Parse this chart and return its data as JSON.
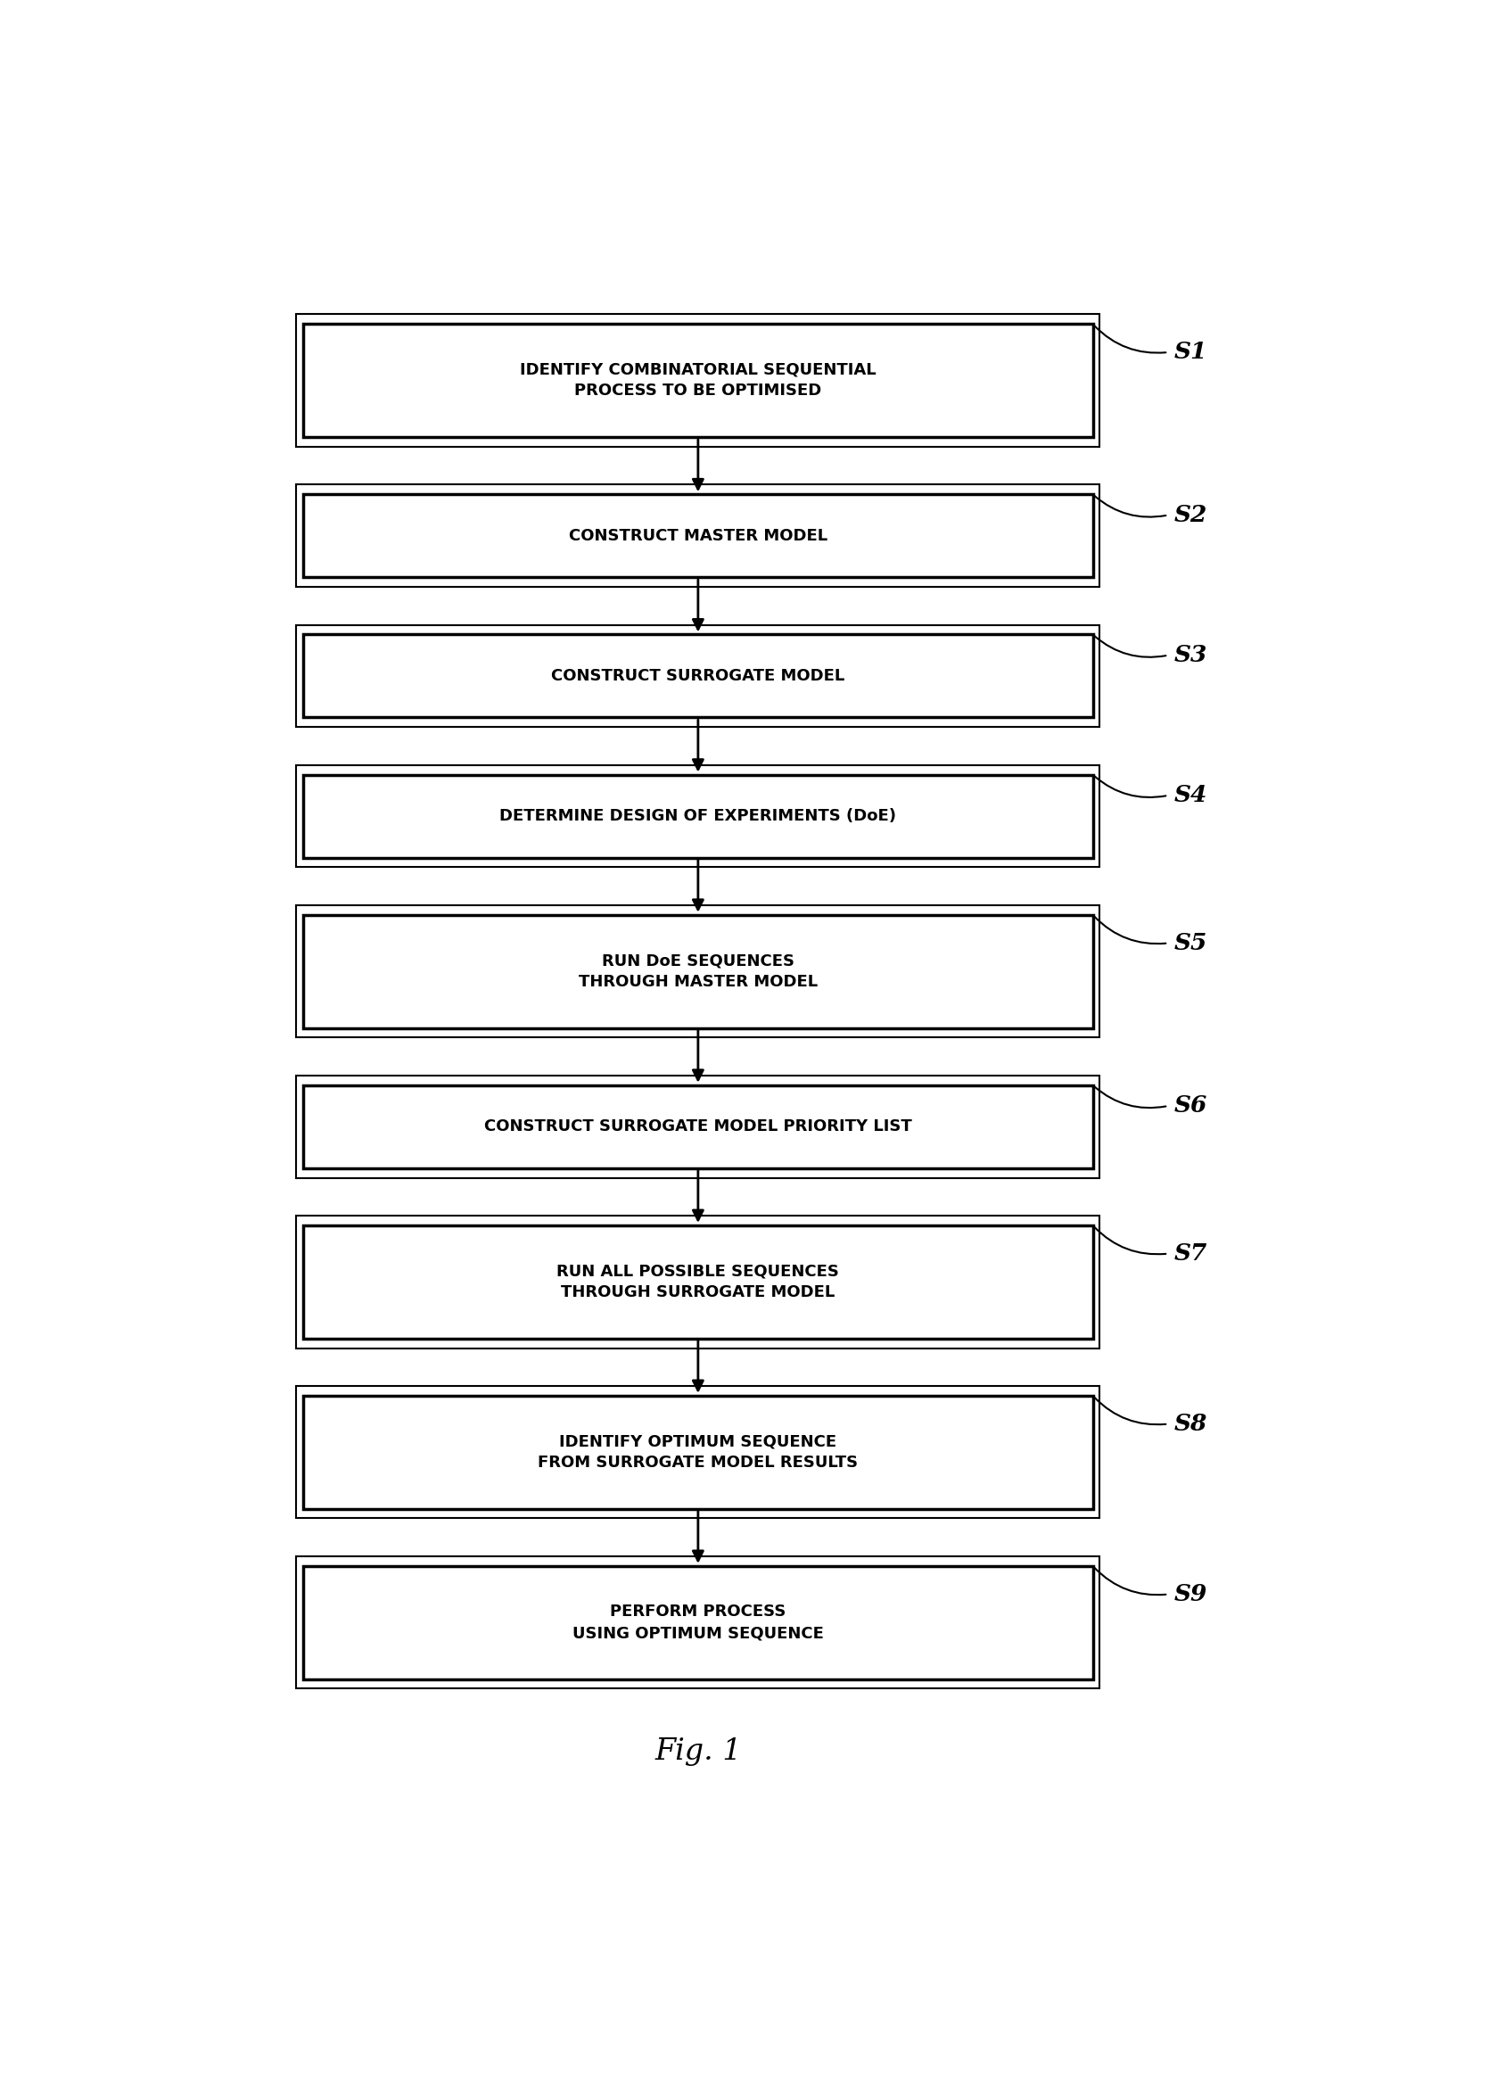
{
  "steps": [
    {
      "id": "S1",
      "lines": [
        "IDENTIFY COMBINATORIAL SEQUENTIAL",
        "PROCESS TO BE OPTIMISED"
      ],
      "two_line": true
    },
    {
      "id": "S2",
      "lines": [
        "CONSTRUCT MASTER MODEL"
      ],
      "two_line": false
    },
    {
      "id": "S3",
      "lines": [
        "CONSTRUCT SURROGATE MODEL"
      ],
      "two_line": false
    },
    {
      "id": "S4",
      "lines": [
        "DETERMINE DESIGN OF EXPERIMENTS (DoE)"
      ],
      "two_line": false
    },
    {
      "id": "S5",
      "lines": [
        "RUN DoE SEQUENCES",
        "THROUGH MASTER MODEL"
      ],
      "two_line": true
    },
    {
      "id": "S6",
      "lines": [
        "CONSTRUCT SURROGATE MODEL PRIORITY LIST"
      ],
      "two_line": false
    },
    {
      "id": "S7",
      "lines": [
        "RUN ALL POSSIBLE SEQUENCES",
        "THROUGH SURROGATE MODEL"
      ],
      "two_line": true
    },
    {
      "id": "S8",
      "lines": [
        "IDENTIFY OPTIMUM SEQUENCE",
        "FROM SURROGATE MODEL RESULTS"
      ],
      "two_line": true
    },
    {
      "id": "S9",
      "lines": [
        "PERFORM PROCESS",
        "USING OPTIMUM SEQUENCE"
      ],
      "two_line": true
    }
  ],
  "fig_label": "Fig. 1",
  "background_color": "#ffffff",
  "box_edge_color": "#000000",
  "text_color": "#000000",
  "arrow_color": "#000000",
  "box_fill": "#ffffff",
  "fig_width": 16.8,
  "fig_height": 23.49
}
